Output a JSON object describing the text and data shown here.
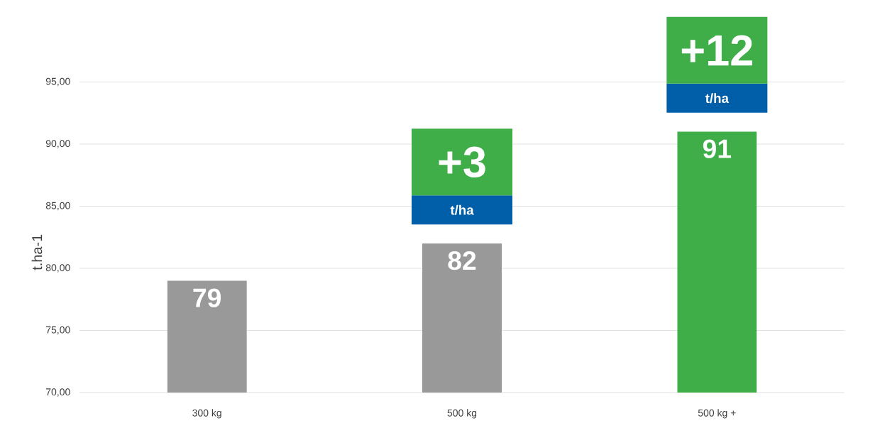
{
  "chart_data": {
    "type": "bar",
    "ylabel": "t.ha-1",
    "categories": [
      "300 kg",
      "500 kg",
      "500 kg +"
    ],
    "values": [
      79,
      82,
      91
    ],
    "colors": [
      "#999999",
      "#999999",
      "#3fae49"
    ],
    "data_labels": true,
    "ylim": [
      70,
      95
    ],
    "yticks": [
      {
        "value": 70,
        "label": "70,00"
      },
      {
        "value": 75,
        "label": "75,00"
      },
      {
        "value": 80,
        "label": "80,00"
      },
      {
        "value": 85,
        "label": "85,00"
      },
      {
        "value": 90,
        "label": "90,00"
      },
      {
        "value": 95,
        "label": "95,00"
      }
    ],
    "grid": "y",
    "annotations": [
      "+3",
      "t/ha",
      "+12",
      "t/ha"
    ]
  }
}
